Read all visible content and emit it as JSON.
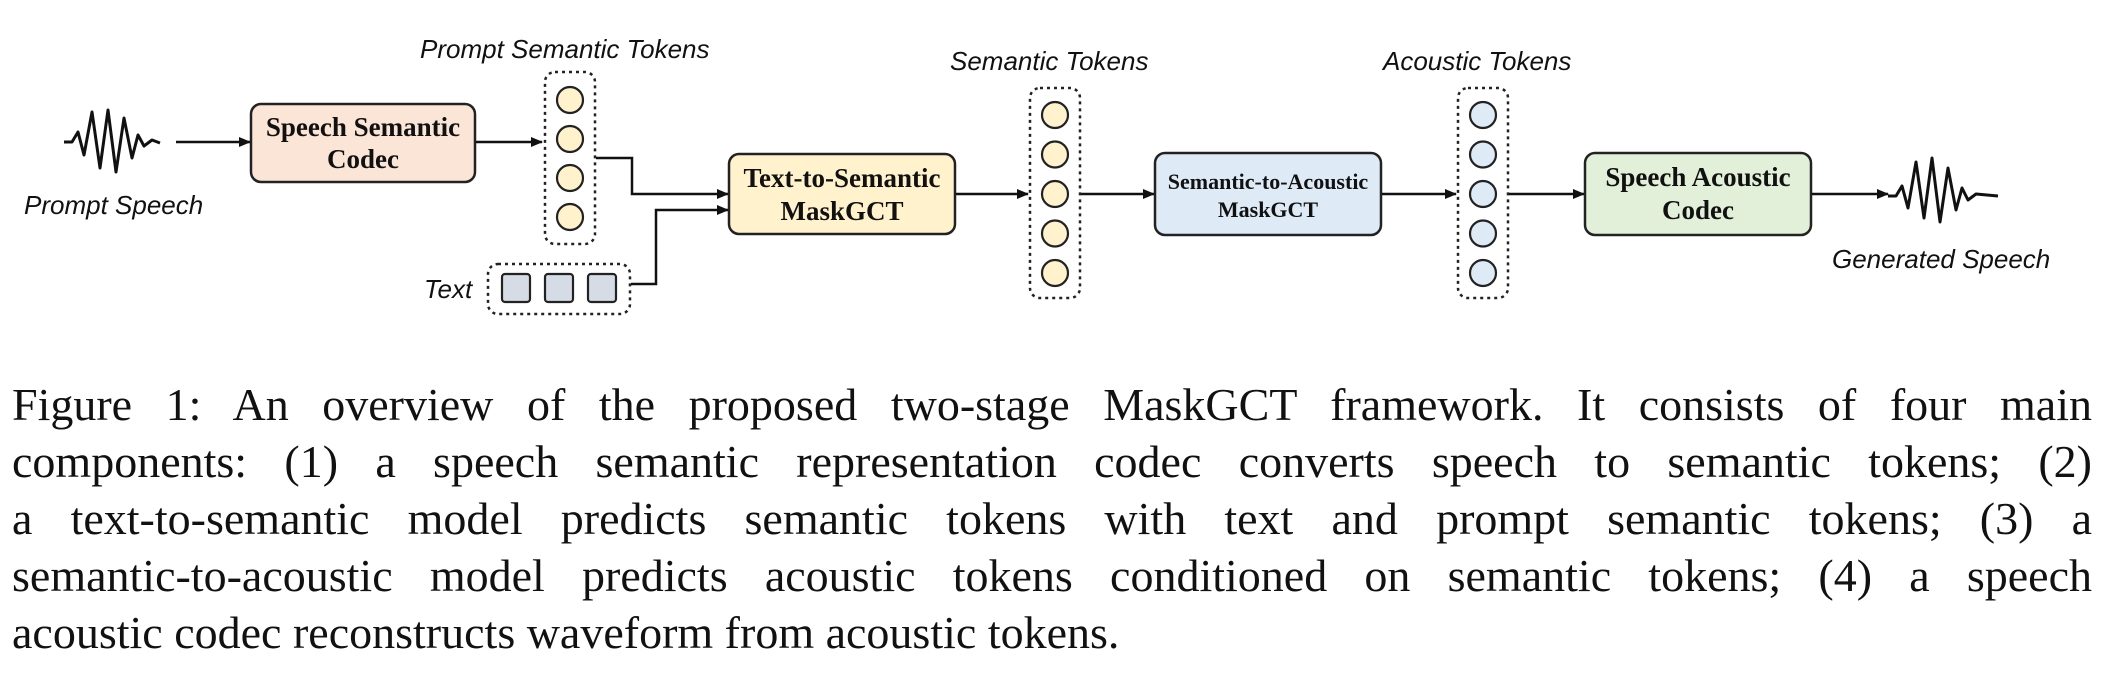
{
  "diagram": {
    "labels": {
      "prompt_speech": "Prompt Speech",
      "prompt_semantic_tokens": "Prompt Semantic Tokens",
      "text": "Text",
      "semantic_tokens": "Semantic Tokens",
      "acoustic_tokens": "Acoustic Tokens",
      "generated_speech": "Generated Speech"
    },
    "boxes": {
      "speech_semantic_codec": [
        "Speech Semantic",
        "Codec"
      ],
      "text_to_semantic": [
        "Text-to-Semantic",
        "MaskGCT"
      ],
      "semantic_to_acoustic": [
        "Semantic-to-Acoustic",
        "MaskGCT"
      ],
      "speech_acoustic_codec": [
        "Speech Acoustic",
        "Codec"
      ]
    },
    "colors": {
      "semantic_codec_fill": "#FBE5D6",
      "text_to_semantic_fill": "#FFF2CC",
      "semantic_to_acoustic_fill": "#DEEBF7",
      "acoustic_codec_fill": "#E2F0D9",
      "semantic_token_fill": "#FFF2CC",
      "acoustic_token_fill": "#DEEBF7",
      "text_token_fill": "#D6DCE5"
    }
  },
  "caption": {
    "lines": [
      "Figure 1: An overview of the proposed two-stage MaskGCT framework. It consists of four main",
      "components: (1) a speech semantic representation codec converts speech to semantic tokens; (2)",
      "a text-to-semantic model predicts semantic tokens with text and prompt semantic tokens; (3) a",
      "semantic-to-acoustic model predicts acoustic tokens conditioned on semantic tokens; (4) a speech",
      "acoustic codec reconstructs waveform from acoustic tokens."
    ]
  }
}
